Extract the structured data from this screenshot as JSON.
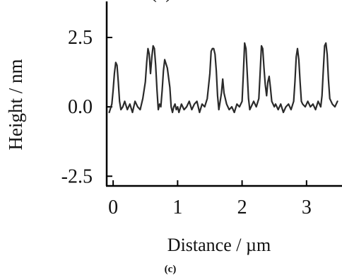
{
  "chart_data": {
    "type": "line",
    "panel_label": "(c)",
    "xlabel": "Distance / µm",
    "ylabel": "Height / nm",
    "x_ticks": [
      0,
      1,
      2,
      3
    ],
    "y_ticks": [
      2.5,
      0.0,
      -2.5
    ],
    "x_tick_labels": [
      "0",
      "1",
      "2",
      "3"
    ],
    "y_tick_labels": [
      "2.5",
      "0.0",
      "-2.5"
    ],
    "xlim": [
      -0.1,
      3.55
    ],
    "ylim": [
      -2.85,
      3.8
    ],
    "grid": false,
    "legend": "none",
    "colors": {
      "line": "#2a2a2a",
      "axis": "#000000"
    },
    "series": [
      {
        "x": [
          -0.06,
          -0.02,
          0.0,
          0.02,
          0.04,
          0.06,
          0.08,
          0.1,
          0.12,
          0.15,
          0.18,
          0.22,
          0.26,
          0.3,
          0.34,
          0.38,
          0.42,
          0.46,
          0.5,
          0.52,
          0.54,
          0.56,
          0.58,
          0.6,
          0.62,
          0.64,
          0.66,
          0.68,
          0.7,
          0.72,
          0.74,
          0.76,
          0.78,
          0.8,
          0.84,
          0.88,
          0.9,
          0.92,
          0.94,
          0.96,
          0.98,
          1.0,
          1.02,
          1.06,
          1.1,
          1.14,
          1.18,
          1.22,
          1.26,
          1.3,
          1.34,
          1.38,
          1.42,
          1.46,
          1.5,
          1.52,
          1.54,
          1.56,
          1.58,
          1.6,
          1.62,
          1.64,
          1.66,
          1.68,
          1.7,
          1.72,
          1.76,
          1.8,
          1.84,
          1.88,
          1.92,
          1.96,
          2.0,
          2.02,
          2.04,
          2.06,
          2.08,
          2.1,
          2.12,
          2.14,
          2.18,
          2.22,
          2.26,
          2.28,
          2.3,
          2.32,
          2.34,
          2.36,
          2.38,
          2.4,
          2.42,
          2.44,
          2.46,
          2.48,
          2.5,
          2.52,
          2.56,
          2.6,
          2.64,
          2.68,
          2.72,
          2.76,
          2.8,
          2.82,
          2.84,
          2.86,
          2.88,
          2.9,
          2.92,
          2.94,
          2.98,
          3.02,
          3.06,
          3.1,
          3.14,
          3.18,
          3.22,
          3.24,
          3.26,
          3.28,
          3.3,
          3.32,
          3.34,
          3.36,
          3.4,
          3.44,
          3.48
        ],
        "y": [
          -0.2,
          0.1,
          0.6,
          1.2,
          1.6,
          1.5,
          0.9,
          0.2,
          -0.1,
          0.0,
          0.2,
          -0.1,
          0.1,
          -0.2,
          0.2,
          0.0,
          -0.1,
          0.3,
          0.9,
          1.6,
          2.1,
          1.9,
          1.2,
          1.8,
          2.2,
          2.1,
          1.5,
          0.6,
          -0.1,
          0.1,
          0.0,
          0.6,
          1.3,
          1.7,
          1.4,
          0.7,
          0.0,
          -0.2,
          0.0,
          0.1,
          -0.1,
          0.0,
          -0.2,
          0.1,
          -0.1,
          0.0,
          0.2,
          -0.1,
          0.1,
          0.2,
          -0.2,
          0.1,
          0.0,
          0.3,
          1.2,
          2.0,
          2.1,
          2.1,
          1.9,
          1.3,
          0.4,
          -0.1,
          0.2,
          0.5,
          1.0,
          0.5,
          0.1,
          -0.1,
          0.0,
          -0.2,
          0.1,
          0.0,
          0.2,
          1.2,
          2.3,
          2.1,
          1.2,
          0.3,
          -0.1,
          0.0,
          0.2,
          0.0,
          0.3,
          1.2,
          2.2,
          2.1,
          1.4,
          0.8,
          0.4,
          0.9,
          1.1,
          0.7,
          0.2,
          0.1,
          0.0,
          0.1,
          -0.1,
          0.1,
          -0.2,
          0.0,
          0.1,
          -0.1,
          0.2,
          0.9,
          1.8,
          2.1,
          1.7,
          0.9,
          0.2,
          0.1,
          0.0,
          0.2,
          0.0,
          0.1,
          -0.1,
          0.2,
          0.0,
          0.4,
          1.3,
          2.2,
          2.3,
          1.9,
          1.0,
          0.3,
          0.1,
          0.0,
          0.2
        ]
      }
    ]
  }
}
